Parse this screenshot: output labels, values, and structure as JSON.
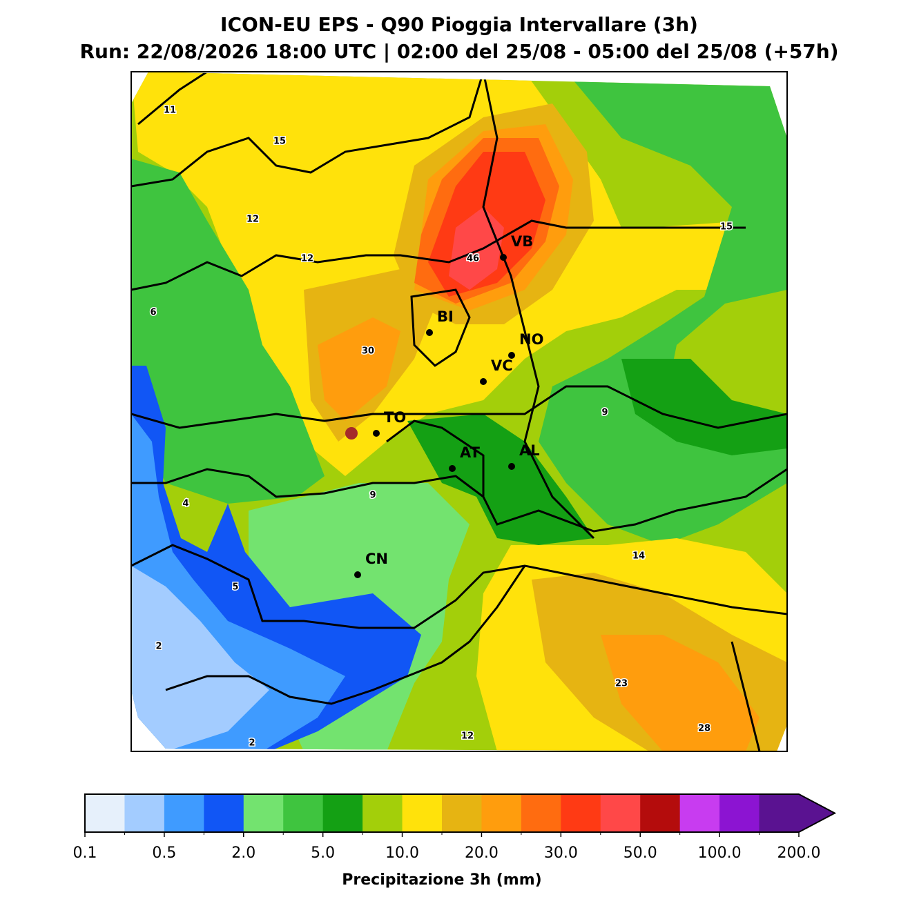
{
  "header": {
    "title": "ICON-EU EPS - Q90 Pioggia Intervallare (3h)",
    "subtitle": "Run: 22/08/2026 18:00 UTC | 02:00 del 25/08 - 05:00 del 25/08 (+57h)"
  },
  "map": {
    "cities": [
      "VB",
      "BI",
      "NO",
      "VC",
      "TO",
      "AT",
      "AL",
      "CN"
    ],
    "value_labels": [
      11,
      15,
      12,
      12,
      46,
      6,
      30,
      9,
      15,
      4,
      9,
      14,
      5,
      2,
      23,
      28,
      12,
      2
    ]
  },
  "colorbar": {
    "label": "Precipitazione 3h (mm)",
    "colors": [
      "#e6f0fb",
      "#a3ccff",
      "#3f9bff",
      "#1156f5",
      "#73e36f",
      "#3fc43f",
      "#14a014",
      "#a3cf0a",
      "#ffe20b",
      "#e6b412",
      "#ff9d0d",
      "#ff6c10",
      "#ff3a14",
      "#ff4848",
      "#b40c0c",
      "#c83cf0",
      "#8c14d2",
      "#5a1291"
    ],
    "ticks": [
      0.1,
      0.5,
      {
        "value": 2,
        "label": "2.0"
      },
      {
        "value": 5,
        "label": "5.0"
      },
      {
        "value": 10,
        "label": "10.0"
      },
      {
        "value": 20,
        "label": "20.0"
      },
      {
        "value": 30,
        "label": "30.0"
      },
      {
        "value": 50,
        "label": "50.0"
      },
      {
        "value": 100,
        "label": "100.0"
      },
      {
        "value": 200,
        "label": "200.0"
      }
    ]
  }
}
